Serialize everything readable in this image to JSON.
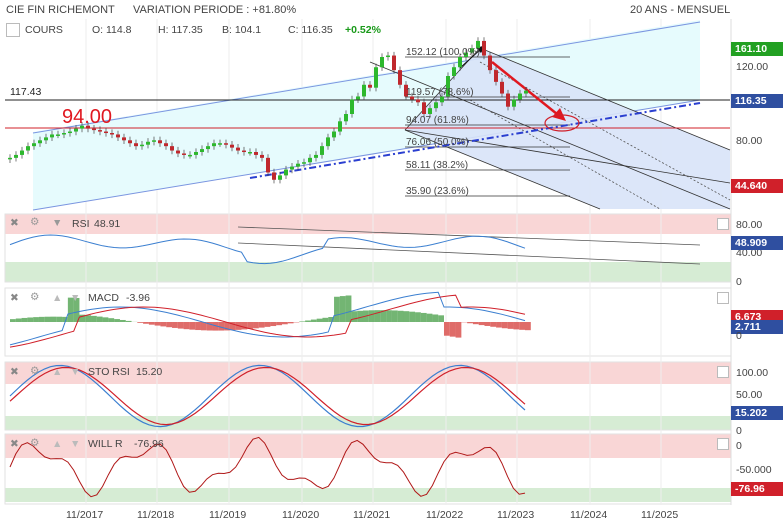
{
  "header": {
    "title": "CIE FIN RICHEMONT",
    "variation": "VARIATION PERIODE : +81.80%",
    "period": "20 ANS - MENSUEL"
  },
  "ohlc": {
    "series_label": "COURS",
    "open": "O: 114.8",
    "high": "H: 117.35",
    "low": "B: 104.1",
    "close": "C: 116.35",
    "change": "+0.52%"
  },
  "price_panel": {
    "hline_label": "117.43",
    "support_label": "94.00",
    "axis_ticks": [
      "120.00",
      "80.00"
    ],
    "tags": {
      "upper": "161.10",
      "last": "116.35",
      "lower": "44.640"
    },
    "fib_levels": [
      "152.12  (100.0%)",
      "119.57 (78.6%)",
      "94.07 (61.8%)",
      "76.06 (50.0%)",
      "58.11  (38.2%)",
      "35.90  (23.6%)"
    ]
  },
  "indicators": [
    {
      "name": "RSI",
      "value": "48.91",
      "tag": "48.909",
      "ticks": [
        "80.00",
        "40.00",
        "0"
      ]
    },
    {
      "name": "MACD",
      "value": "-3.96",
      "tag1": "6.673",
      "tag2": "2.711",
      "ticks": [
        "0"
      ]
    },
    {
      "name": "STO RSI",
      "value": "15.20",
      "tag": "15.202",
      "ticks": [
        "100.00",
        "50.00",
        "0"
      ]
    },
    {
      "name": "WILL R",
      "value": "-76.96",
      "tag": "-76.96",
      "ticks": [
        "0",
        "-50.000"
      ]
    }
  ],
  "x_axis": [
    "11/2017",
    "11/2018",
    "11/2019",
    "11/2020",
    "11/2021",
    "11/2022",
    "11/2023",
    "11/2024",
    "11/2025"
  ],
  "colors": {
    "up": "#2db82d",
    "down": "#c0282d",
    "channel": "#6f8de0",
    "red_tag": "#d0202a",
    "blue_tag": "#2f4fa0",
    "green_tag": "#22a022"
  },
  "chart_data": {
    "type": "candlestick",
    "title": "CIE FIN RICHEMONT",
    "x_range": [
      "11/2016",
      "11/2025"
    ],
    "y_range": [
      35,
      165
    ],
    "closes": [
      70,
      72,
      75,
      78,
      80,
      82,
      84,
      86,
      86,
      87,
      88,
      90,
      92,
      90,
      89,
      88,
      87,
      86,
      84,
      82,
      80,
      78,
      79,
      81,
      82,
      80,
      78,
      75,
      73,
      72,
      72,
      74,
      76,
      78,
      80,
      80,
      79,
      77,
      75,
      74,
      74,
      72,
      70,
      60,
      55,
      58,
      62,
      64,
      66,
      67,
      70,
      72,
      78,
      84,
      88,
      95,
      100,
      110,
      112,
      120,
      118,
      132,
      139,
      140,
      130,
      120,
      112,
      110,
      108,
      100,
      104,
      108,
      112,
      126,
      132,
      139,
      142,
      145,
      150,
      140,
      130,
      122,
      114,
      105,
      110,
      114,
      116
    ]
  }
}
